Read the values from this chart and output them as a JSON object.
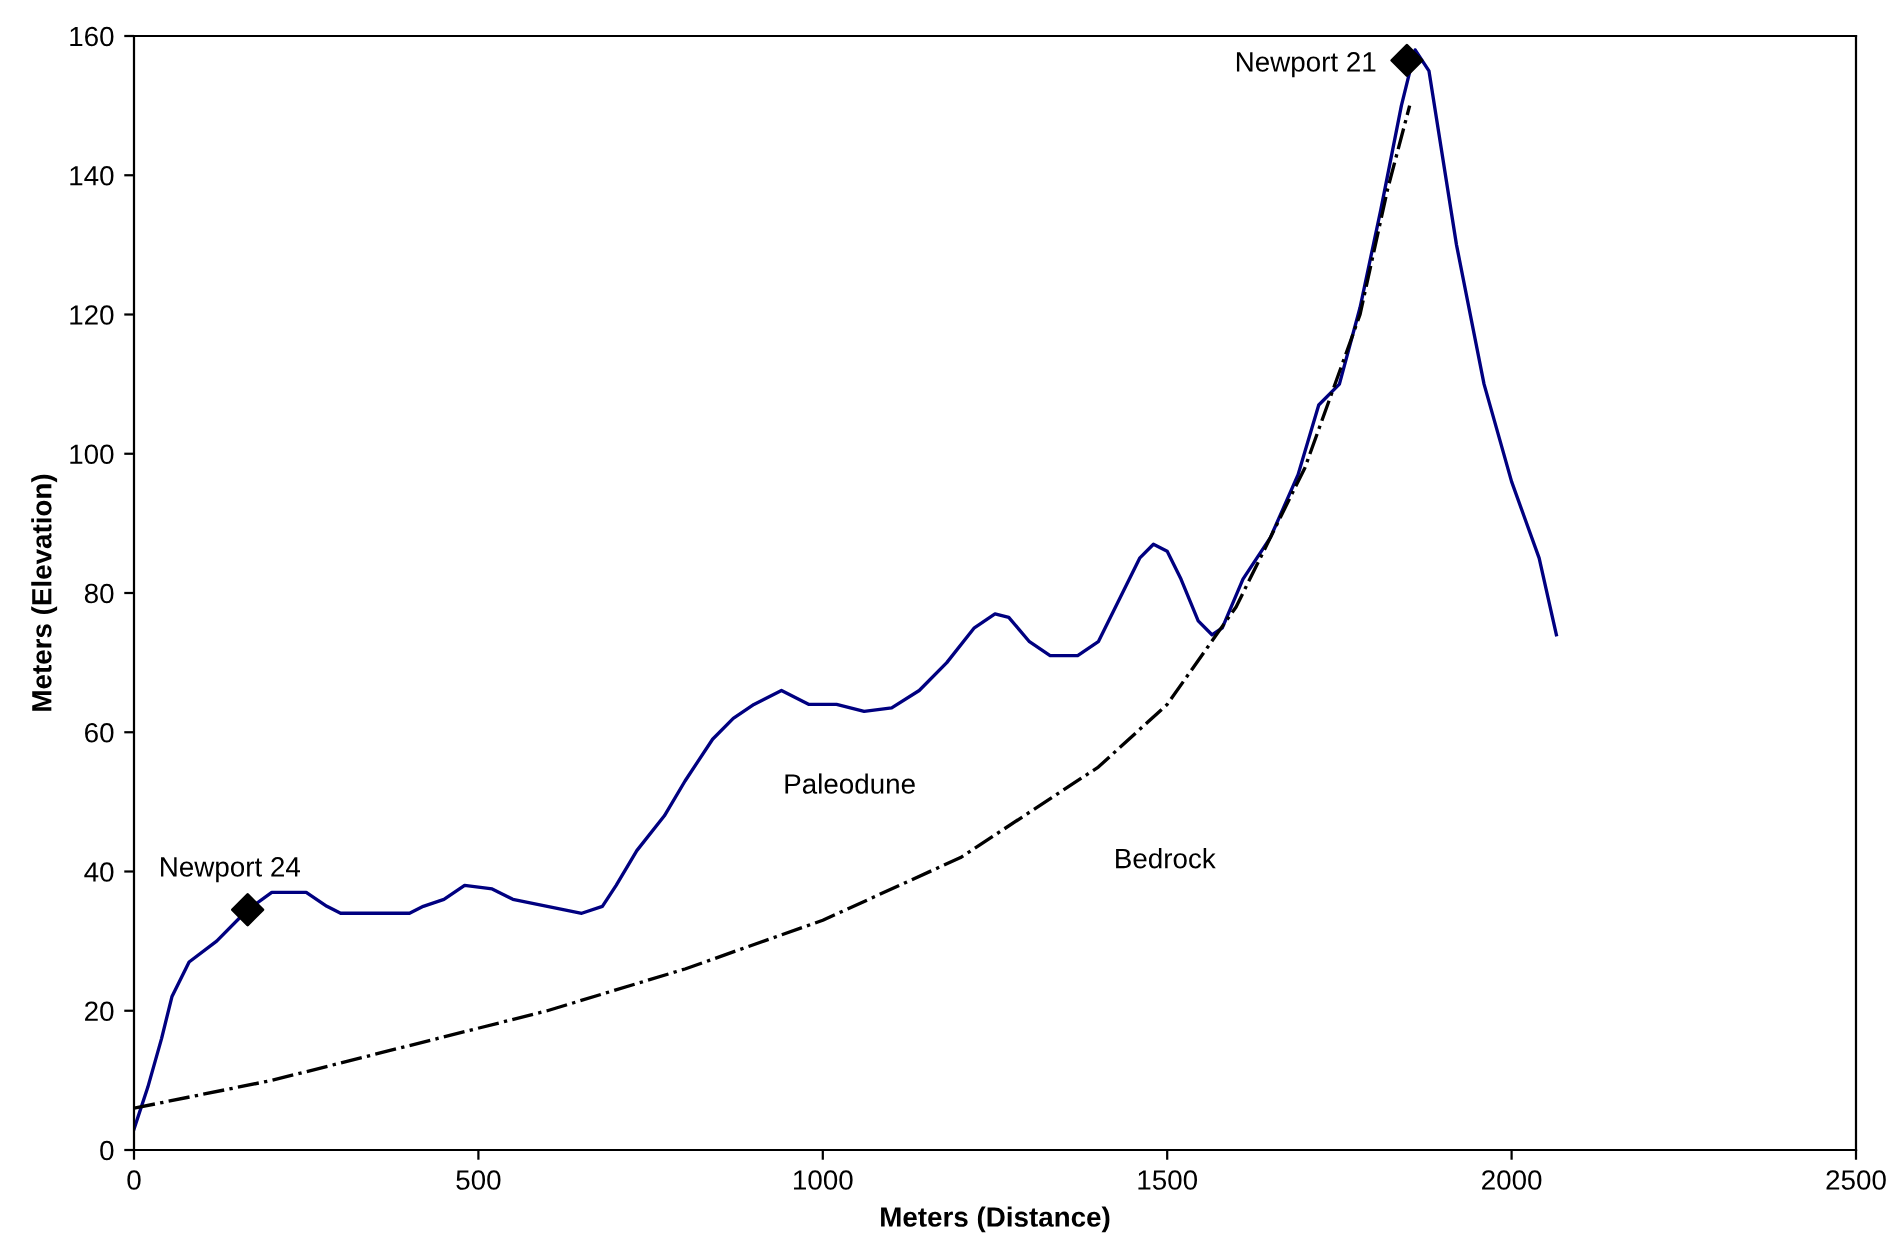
{
  "chart_data": {
    "type": "line",
    "xlabel": "Meters (Distance)",
    "ylabel": "Meters (Elevation)",
    "xlim": [
      0,
      2500
    ],
    "xticks": [
      0,
      500,
      1000,
      1500,
      2000,
      2500
    ],
    "ylim": [
      0,
      160
    ],
    "yticks": [
      0,
      20,
      40,
      60,
      80,
      100,
      120,
      140,
      160
    ],
    "grid": false,
    "legend": false,
    "series": [
      {
        "name": "Paleodune",
        "color": "#000080",
        "line_style": "solid",
        "x": [
          0,
          20,
          40,
          55,
          80,
          120,
          165,
          200,
          250,
          280,
          300,
          400,
          420,
          450,
          480,
          520,
          550,
          600,
          650,
          680,
          700,
          730,
          770,
          800,
          840,
          870,
          900,
          940,
          980,
          1020,
          1060,
          1100,
          1140,
          1180,
          1220,
          1250,
          1270,
          1300,
          1330,
          1370,
          1400,
          1430,
          1460,
          1480,
          1500,
          1520,
          1545,
          1565,
          1580,
          1610,
          1650,
          1690,
          1720,
          1750,
          1780,
          1810,
          1840,
          1860,
          1880,
          1920,
          1960,
          2000,
          2040,
          2065
        ],
        "values": [
          3,
          9,
          16,
          22,
          27,
          30,
          34.5,
          37,
          37,
          35,
          34,
          34,
          35,
          36,
          38,
          37.5,
          36,
          35,
          34,
          35,
          38,
          43,
          48,
          53,
          59,
          62,
          64,
          66,
          64,
          64,
          63,
          63.5,
          66,
          70,
          75,
          77,
          76.5,
          73,
          71,
          71,
          73,
          79,
          85,
          87,
          86,
          82,
          76,
          74,
          75,
          82,
          88,
          97,
          107,
          110,
          121,
          135,
          150,
          158,
          155,
          130,
          110,
          96,
          85,
          74
        ]
      },
      {
        "name": "Bedrock",
        "color": "#000000",
        "line_style": "dashdot",
        "x": [
          0,
          200,
          400,
          600,
          800,
          1000,
          1200,
          1400,
          1500,
          1600,
          1700,
          1780,
          1820,
          1852
        ],
        "values": [
          6,
          10,
          15,
          20,
          26,
          33,
          42,
          55,
          64,
          78,
          98,
          120,
          138,
          150
        ]
      },
      {
        "type": "scatter",
        "name": "Newport 24",
        "color": "#000000",
        "marker": "diamond",
        "x": [
          165
        ],
        "values": [
          34.5
        ]
      },
      {
        "type": "scatter",
        "name": "Newport 21",
        "color": "#000000",
        "marker": "diamond",
        "x": [
          1848
        ],
        "values": [
          156.5
        ]
      }
    ]
  }
}
